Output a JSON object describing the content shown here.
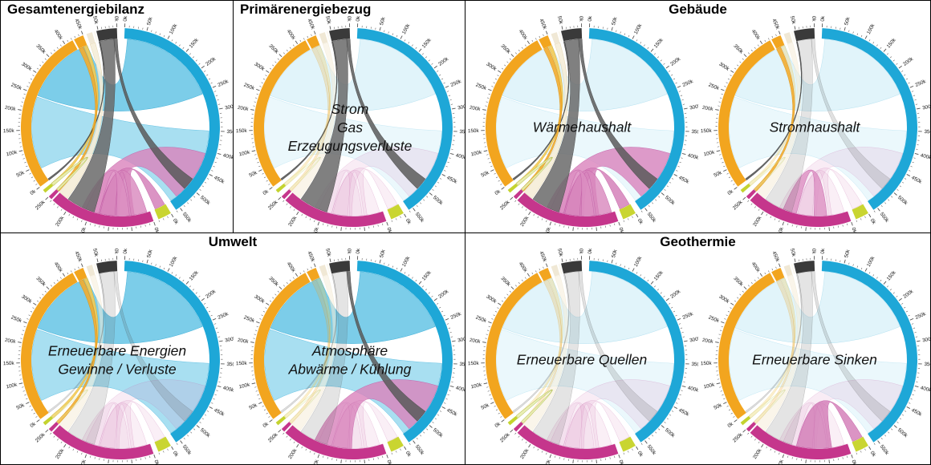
{
  "chart_data": {
    "type": "chord",
    "description": "Eight circos-style chord diagrams of an energy balance; all panels share the same segment scales and flow ribbons, each panel highlights a subset of flows",
    "value_unit": "k",
    "tick_minor_step_k": 10,
    "label_step_k": 50,
    "colors": {
      "orange_arc": "#F2A51F",
      "cyan_arc": "#1EA7D7",
      "magenta_arc": "#C5368C",
      "lime_arc": "#C4D32F",
      "black_arc": "#3A3A3A",
      "ivory_arc": "#F0E8D5"
    },
    "segments": [
      {
        "id": "cyan",
        "color": "#1EA7D7",
        "start_deg": 2.5,
        "end_deg": 146,
        "v_start": 0,
        "v_end": 560,
        "tick_step": 10,
        "label_step": 50,
        "labels": true,
        "dividers": []
      },
      {
        "id": "lime",
        "color": "#C9D531",
        "start_deg": 149.5,
        "end_deg": 157.5,
        "v_start": 0,
        "v_end": 30,
        "tick_step": 10,
        "label_step": 50,
        "labels": true,
        "dividers": []
      },
      {
        "id": "magenta",
        "color": "#C5368C",
        "start_deg": 160.5,
        "end_deg": 226,
        "v_start": 0,
        "v_end": 250,
        "tick_step": 10,
        "label_step": 50,
        "labels": true,
        "dividers": [
          240
        ]
      },
      {
        "id": "lime2",
        "color": "#C4D32F",
        "start_deg": 229,
        "end_deg": 231,
        "v_start": 0,
        "v_end": 7,
        "tick_step": 0,
        "label_step": 0,
        "labels": false,
        "dividers": []
      },
      {
        "id": "orange",
        "color": "#F2A51F",
        "start_deg": 233.5,
        "end_deg": 338,
        "v_start": 0,
        "v_end": 450,
        "tick_step": 10,
        "label_step": 50,
        "labels": true,
        "dividers": [
          423
        ]
      },
      {
        "id": "sliverA",
        "color": "#F0E8D5",
        "start_deg": 340,
        "end_deg": 343.5,
        "v_start": 0,
        "v_end": 15,
        "tick_step": 0,
        "label_step": 0,
        "labels": false,
        "dividers": []
      },
      {
        "id": "sliverB",
        "color": "#FBF8F0",
        "start_deg": 344.3,
        "end_deg": 345.3,
        "v_start": 0,
        "v_end": 4,
        "tick_step": 0,
        "label_step": 0,
        "labels": false,
        "dividers": []
      },
      {
        "id": "black",
        "color": "#3A3A3A",
        "start_deg": 346,
        "end_deg": 358,
        "v_start": 55,
        "v_end": 0,
        "tick_step": 10,
        "label_step": 50,
        "labels": true,
        "dividers": []
      }
    ],
    "ribbons": [
      {
        "id": "cyan_lower",
        "a": [
          "cyan",
          350,
          558
        ],
        "b": [
          "orange",
          40,
          244
        ],
        "fill": "#92D7EE",
        "stroke": "#4FB8DF",
        "fo": 0.18,
        "ho": 0.8
      },
      {
        "id": "cyan_upper",
        "a": [
          "cyan",
          8,
          255
        ],
        "b": [
          "orange",
          248,
          450
        ],
        "fill": "#5BC1E4",
        "stroke": "#2EA8D3",
        "fo": 0.18,
        "ho": 0.8
      },
      {
        "id": "ivory_band",
        "a": [
          "sliverA",
          0,
          15
        ],
        "b": [
          "magenta",
          215,
          240
        ],
        "fill": "#F5EDD8",
        "stroke": "#E0CFA4",
        "fo": 0.55,
        "ho": 0.9
      },
      {
        "id": "gold_band",
        "a": [
          "orange",
          440,
          450
        ],
        "b": [
          "lime2",
          0,
          7
        ],
        "fill": "#F4CB55",
        "stroke": "#DAAB28",
        "fo": 0.3,
        "ho": 0.9
      },
      {
        "id": "magenta_big",
        "a": [
          "magenta",
          78,
          172
        ],
        "b": [
          "cyan",
          408,
          540
        ],
        "fill": "#DA82BB",
        "stroke": "#C05CA4",
        "fo": 0.15,
        "ho": 0.8
      },
      {
        "id": "magenta_lime",
        "a": [
          "magenta",
          40,
          128
        ],
        "b": [
          "lime",
          2,
          28
        ],
        "fill": "#D581BA",
        "stroke": "#BE54A0",
        "fo": 0.13,
        "ho": 0.85
      },
      {
        "id": "hump_a",
        "a": [
          "magenta",
          8,
          48
        ],
        "b": [
          "magenta",
          88,
          125
        ],
        "fill": "#D887BD",
        "stroke": "#C05CA4",
        "fo": 0.13,
        "ho": 0.8
      },
      {
        "id": "hump_b",
        "a": [
          "magenta",
          52,
          84
        ],
        "b": [
          "magenta",
          128,
          162
        ],
        "fill": "#DC8FC2",
        "stroke": "#C05CA4",
        "fo": 0.13,
        "ho": 0.8
      },
      {
        "id": "gray_wide",
        "a": [
          "black",
          10,
          52
        ],
        "b": [
          "magenta",
          140,
          212
        ],
        "fill": "#6A6A6A",
        "stroke": "#494949",
        "fo": 0.18,
        "ho": 0.85
      },
      {
        "id": "gray_cyan",
        "a": [
          "black",
          0,
          10
        ],
        "b": [
          "cyan",
          480,
          512
        ],
        "fill": "#5A5A5A",
        "stroke": "#3E3E3E",
        "fo": 0.18,
        "ho": 0.85
      },
      {
        "id": "gray_thin",
        "a": [
          "black",
          52,
          55
        ],
        "b": [
          "orange",
          0,
          5
        ],
        "fill": "#4E4E4E",
        "stroke": "#373737",
        "fo": 0.18,
        "ho": 0.85
      },
      {
        "id": "orange_band",
        "a": [
          "orange",
          425,
          438
        ],
        "b": [
          "magenta",
          242,
          250
        ],
        "fill": "#F3AC2E",
        "stroke": "#D88D12",
        "fo": 0.25,
        "ho": 0.9
      },
      {
        "id": "lime_loop",
        "a": [
          "lime2",
          0,
          7
        ],
        "b": [
          "magenta",
          244,
          250
        ],
        "fill": "#E7EDB2",
        "stroke": "#9DAF29",
        "fo": 0.3,
        "ho": 0.9
      }
    ],
    "groups": [
      {
        "title": "Gesamtenergiebilanz",
        "title_align": "left"
      },
      {
        "title": "Primärenergiebezug",
        "title_align": "left"
      },
      {
        "title": "Gebäude",
        "title_align": "center"
      },
      {
        "title": "Umwelt",
        "title_align": "center"
      },
      {
        "title": "Geothermie",
        "title_align": "center"
      }
    ],
    "panels": [
      {
        "name": "Gesamtenergiebilanz",
        "group": 0,
        "center_label_lines": [],
        "highlights": "all"
      },
      {
        "name": "Primärenergiebezug",
        "group": 1,
        "center_label_lines": [
          "Strom",
          "Gas",
          "Erzeugungsverluste"
        ],
        "highlights": [
          "gray_wide",
          "gray_cyan",
          "gray_thin"
        ]
      },
      {
        "name": "Wärmehaushalt",
        "group": 2,
        "center_label_lines": [
          "Wärmehaushalt"
        ],
        "highlights": [
          "ivory_band",
          "gold_band",
          "magenta_big",
          "magenta_lime",
          "hump_a",
          "hump_b",
          "gray_wide",
          "gray_cyan",
          "gray_thin",
          "orange_band",
          "lime_loop"
        ]
      },
      {
        "name": "Stromhaushalt",
        "group": 2,
        "center_label_lines": [
          "Stromhaushalt"
        ],
        "highlights": [
          "gray_thin",
          "hump_b",
          "orange_band"
        ]
      },
      {
        "name": "Erneuerbare Energien Gewinne / Verluste",
        "group": 3,
        "center_label_lines": [
          "Erneuerbare Energien",
          "Gewinne / Verluste"
        ],
        "highlights": [
          "cyan_lower",
          "cyan_upper",
          "orange_band",
          "gold_band"
        ]
      },
      {
        "name": "Atmosphäre Abwärme / Kühlung",
        "group": 3,
        "center_label_lines": [
          "Atmosphäre",
          "Abwärme / Kühlung"
        ],
        "highlights": [
          "cyan_lower",
          "cyan_upper",
          "gray_cyan",
          "magenta_big"
        ]
      },
      {
        "name": "Erneuerbare Quellen",
        "group": 4,
        "center_label_lines": [
          "Erneuerbare Quellen"
        ],
        "highlights": [
          "lime_loop"
        ]
      },
      {
        "name": "Erneuerbare Sinken",
        "group": 4,
        "center_label_lines": [
          "Erneuerbare Sinken"
        ],
        "highlights": [
          "magenta_lime"
        ]
      }
    ]
  }
}
